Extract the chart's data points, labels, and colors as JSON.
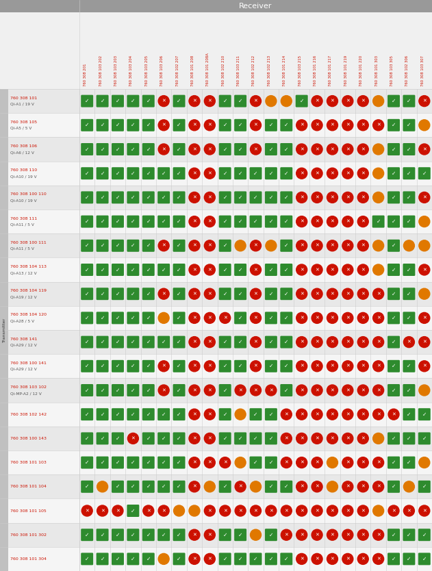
{
  "title_receiver": "Receiver",
  "title_transmitter": "Transmitter",
  "col_headers": [
    "760 308 201",
    "760 308 103 202",
    "760 308 103 203",
    "760 308 103 204",
    "760 308 103 205",
    "760 308 103 206",
    "760 308 102 207",
    "760 308 101 208",
    "760 308 101 208A",
    "760 308 102 210",
    "760 308 103 211",
    "760 308 102 212",
    "760 308 102 213",
    "760 308 101 214",
    "760 308 103 215",
    "760 308 101 216",
    "760 308 101 217",
    "760 308 101 219",
    "760 308 101 220",
    "760 308 101 303",
    "760 308 103 305",
    "760 308 102 306",
    "760 308 103 307"
  ],
  "row_headers": [
    [
      "760 308 101",
      "Qi-A1 / 19 V"
    ],
    [
      "760 308 105",
      "Qi-A5 / 5 V"
    ],
    [
      "760 308 106",
      "Qi-A6 / 12 V"
    ],
    [
      "760 308 110",
      "Qi-A10 / 19 V"
    ],
    [
      "760 308 100 110",
      "Qi-A10 / 19 V"
    ],
    [
      "760 308 111",
      "Qi-A11 / 5 V"
    ],
    [
      "760 308 100 111",
      "Qi-A11 / 5 V"
    ],
    [
      "760 308 104 113",
      "Qi-A13 / 12 V"
    ],
    [
      "760 308 104 119",
      "Qi-A19 / 12 V"
    ],
    [
      "760 308 104 120",
      "Qi-A28 / 5 V"
    ],
    [
      "760 308 141",
      "Qi-A29 / 12 V"
    ],
    [
      "760 308 100 141",
      "Qi-A29 / 12 V"
    ],
    [
      "760 308 103 102",
      "Qi-MP-A2 / 12 V"
    ],
    [
      "760 308 102 142",
      ""
    ],
    [
      "760 308 100 143",
      ""
    ],
    [
      "760 308 101 103",
      ""
    ],
    [
      "760 308 101 104",
      ""
    ],
    [
      "760 308 101 105",
      ""
    ],
    [
      "760 308 101 302",
      ""
    ],
    [
      "760 308 101 304",
      ""
    ]
  ],
  "cell_data": [
    [
      "G",
      "G",
      "G",
      "G",
      "G",
      "R",
      "G",
      "R",
      "R",
      "G",
      "G",
      "R",
      "O",
      "O",
      "G",
      "R",
      "R",
      "R",
      "R",
      "O",
      "G",
      "G",
      "R"
    ],
    [
      "G",
      "G",
      "G",
      "G",
      "G",
      "R",
      "G",
      "R",
      "R",
      "G",
      "G",
      "R",
      "G",
      "G",
      "R",
      "R",
      "R",
      "R",
      "R",
      "R",
      "G",
      "G",
      "O"
    ],
    [
      "G",
      "G",
      "G",
      "G",
      "G",
      "R",
      "G",
      "R",
      "R",
      "G",
      "G",
      "R",
      "G",
      "G",
      "R",
      "R",
      "R",
      "R",
      "R",
      "O",
      "G",
      "G",
      "R"
    ],
    [
      "G",
      "G",
      "G",
      "G",
      "G",
      "G",
      "G",
      "R",
      "R",
      "G",
      "G",
      "G",
      "G",
      "G",
      "R",
      "R",
      "R",
      "R",
      "R",
      "O",
      "G",
      "G",
      "G"
    ],
    [
      "G",
      "G",
      "G",
      "G",
      "G",
      "G",
      "G",
      "R",
      "R",
      "G",
      "G",
      "G",
      "G",
      "G",
      "R",
      "R",
      "R",
      "R",
      "R",
      "O",
      "G",
      "G",
      "R"
    ],
    [
      "G",
      "G",
      "G",
      "G",
      "G",
      "G",
      "G",
      "R",
      "R",
      "G",
      "G",
      "G",
      "G",
      "G",
      "R",
      "R",
      "R",
      "R",
      "R",
      "G",
      "G",
      "G",
      "O"
    ],
    [
      "G",
      "G",
      "G",
      "G",
      "G",
      "R",
      "G",
      "R",
      "R",
      "G",
      "O",
      "R",
      "O",
      "G",
      "R",
      "R",
      "R",
      "R",
      "R",
      "O",
      "G",
      "O",
      "O"
    ],
    [
      "G",
      "G",
      "G",
      "G",
      "G",
      "G",
      "G",
      "R",
      "R",
      "G",
      "G",
      "R",
      "G",
      "G",
      "R",
      "R",
      "R",
      "R",
      "R",
      "O",
      "G",
      "G",
      "R"
    ],
    [
      "G",
      "G",
      "G",
      "G",
      "G",
      "R",
      "G",
      "R",
      "R",
      "G",
      "G",
      "R",
      "G",
      "G",
      "R",
      "R",
      "R",
      "R",
      "R",
      "R",
      "G",
      "G",
      "O"
    ],
    [
      "G",
      "G",
      "G",
      "G",
      "G",
      "O",
      "G",
      "R",
      "R",
      "R",
      "G",
      "R",
      "G",
      "G",
      "R",
      "R",
      "R",
      "R",
      "R",
      "R",
      "G",
      "G",
      "R"
    ],
    [
      "G",
      "G",
      "G",
      "G",
      "G",
      "G",
      "G",
      "R",
      "R",
      "G",
      "G",
      "R",
      "G",
      "G",
      "R",
      "R",
      "R",
      "R",
      "R",
      "R",
      "G",
      "R",
      "R"
    ],
    [
      "G",
      "G",
      "G",
      "G",
      "G",
      "R",
      "G",
      "R",
      "R",
      "G",
      "G",
      "R",
      "G",
      "G",
      "R",
      "R",
      "R",
      "R",
      "R",
      "R",
      "G",
      "G",
      "R"
    ],
    [
      "G",
      "G",
      "G",
      "G",
      "G",
      "R",
      "G",
      "R",
      "R",
      "G",
      "R",
      "R",
      "R",
      "G",
      "R",
      "R",
      "R",
      "R",
      "R",
      "R",
      "G",
      "G",
      "O"
    ],
    [
      "G",
      "G",
      "G",
      "G",
      "G",
      "G",
      "G",
      "R",
      "R",
      "G",
      "O",
      "G",
      "G",
      "R",
      "R",
      "R",
      "R",
      "R",
      "R",
      "R",
      "R",
      "G",
      "G"
    ],
    [
      "G",
      "G",
      "G",
      "R",
      "G",
      "G",
      "G",
      "R",
      "R",
      "G",
      "G",
      "G",
      "G",
      "R",
      "R",
      "R",
      "R",
      "R",
      "R",
      "O",
      "G",
      "G",
      "G"
    ],
    [
      "G",
      "G",
      "G",
      "G",
      "G",
      "G",
      "G",
      "R",
      "R",
      "R",
      "O",
      "G",
      "G",
      "R",
      "R",
      "R",
      "O",
      "R",
      "R",
      "R",
      "G",
      "G",
      "O"
    ],
    [
      "G",
      "O",
      "G",
      "G",
      "G",
      "G",
      "G",
      "R",
      "O",
      "G",
      "R",
      "O",
      "G",
      "G",
      "R",
      "R",
      "O",
      "R",
      "R",
      "R",
      "G",
      "O",
      "G"
    ],
    [
      "R",
      "R",
      "R",
      "G",
      "R",
      "R",
      "O",
      "O",
      "R",
      "R",
      "R",
      "R",
      "R",
      "R",
      "R",
      "R",
      "R",
      "R",
      "R",
      "O",
      "R",
      "R",
      "R"
    ],
    [
      "G",
      "G",
      "G",
      "G",
      "G",
      "G",
      "G",
      "R",
      "R",
      "G",
      "G",
      "O",
      "G",
      "R",
      "R",
      "R",
      "R",
      "R",
      "R",
      "R",
      "G",
      "G",
      "G"
    ],
    [
      "G",
      "G",
      "G",
      "G",
      "G",
      "O",
      "G",
      "R",
      "R",
      "G",
      "G",
      "G",
      "G",
      "G",
      "R",
      "R",
      "R",
      "R",
      "R",
      "R",
      "G",
      "G",
      "G"
    ]
  ],
  "bg_color_header": "#999999",
  "bg_color_row_even": "#e8e8e8",
  "bg_color_row_odd": "#f5f5f5",
  "color_green": "#2e8b2e",
  "color_red": "#cc1100",
  "color_orange": "#e07800",
  "text_color_header": "#ffffff",
  "text_color_row": "#cc1100",
  "text_color_sub": "#555555"
}
